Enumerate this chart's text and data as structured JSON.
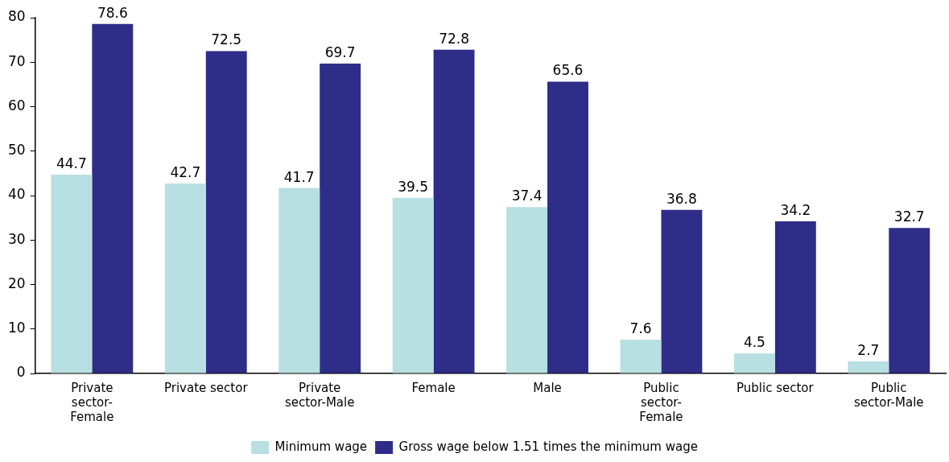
{
  "chart_data": {
    "type": "bar",
    "categories": [
      "Private sector-Female",
      "Private sector",
      "Private sector-Male",
      "Female",
      "Male",
      "Public sector-Female",
      "Public sector",
      "Public sector-Male"
    ],
    "series": [
      {
        "name": "Minimum wage",
        "color": "#b8dfe2",
        "values": [
          44.7,
          42.7,
          41.7,
          39.5,
          37.4,
          7.6,
          4.5,
          2.7
        ]
      },
      {
        "name": "Gross wage below 1.51 times the minimum wage",
        "color": "#2e2d88",
        "values": [
          78.6,
          72.5,
          69.7,
          72.8,
          65.6,
          36.8,
          34.2,
          32.7
        ]
      }
    ],
    "ylim": [
      0,
      80
    ],
    "yticks": [
      0,
      10,
      20,
      30,
      40,
      50,
      60,
      70,
      80
    ],
    "grid": false,
    "legend": "bottom",
    "data_labels": true
  }
}
